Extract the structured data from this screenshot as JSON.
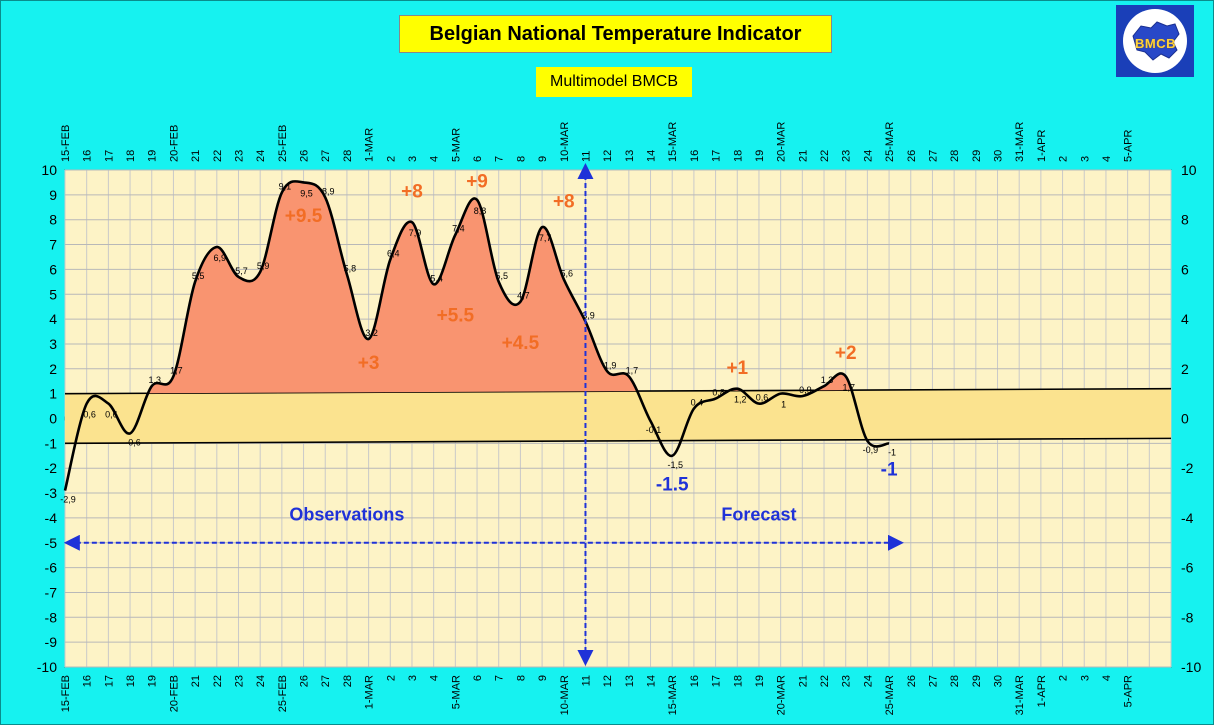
{
  "header": {
    "title": "Belgian National Temperature Indicator",
    "subtitle": "Multimodel BMCB",
    "logo_text": "BMCB"
  },
  "colors": {
    "background": "#16f2f0",
    "plot_area": "#fdf3c6",
    "band": "#fbe38f",
    "fill_above": "#f99470",
    "curve": "#000000",
    "accent_orange": "#f26d25",
    "accent_blue": "#1f32d8",
    "title_bg": "#ffff00",
    "logo_bg": "#1a3fb8"
  },
  "chart_data": {
    "type": "line",
    "x_tick_labels": [
      "15-FEB",
      "16",
      "17",
      "18",
      "19",
      "20-FEB",
      "21",
      "22",
      "23",
      "24",
      "25-FEB",
      "26",
      "27",
      "28",
      "1-MAR",
      "2",
      "3",
      "4",
      "5-MAR",
      "6",
      "7",
      "8",
      "9",
      "10-MAR",
      "11",
      "12",
      "13",
      "14",
      "15-MAR",
      "16",
      "17",
      "18",
      "19",
      "20-MAR",
      "21",
      "22",
      "23",
      "24",
      "25-MAR",
      "26",
      "27",
      "28",
      "29",
      "30",
      "31-MAR",
      "1-APR",
      "2",
      "3",
      "4",
      "5-APR",
      "",
      ""
    ],
    "y_left": {
      "min": -10,
      "max": 10,
      "step": 1
    },
    "y_right": {
      "min": -10,
      "max": 10,
      "ticks": [
        10,
        8,
        6,
        4,
        2,
        0,
        -2,
        -4,
        -6,
        -8,
        -10
      ]
    },
    "grid": true,
    "series": [
      {
        "values": [
          -2.9,
          0.6,
          0.6,
          -0.6,
          1.3,
          1.7,
          5.5,
          6.9,
          5.7,
          5.9,
          9.1,
          9.5,
          8.9,
          5.8,
          3.2,
          6.4,
          7.9,
          5.4,
          7.4,
          8.8,
          5.5,
          4.7,
          7.7,
          5.6,
          3.9,
          1.9,
          1.7,
          -0.1,
          -1.5,
          0.4,
          0.8,
          1.2,
          0.6,
          1.0,
          0.9,
          1.3,
          1.7,
          -0.9,
          -1.0
        ],
        "labels": [
          "-2,9",
          "0,6",
          "0,6",
          "-0,6",
          "1,3",
          "1,7",
          "5,5",
          "6,9",
          "5,7",
          "5,9",
          "9,1",
          "9,5",
          "8,9",
          "5,8",
          "3,2",
          "6,4",
          "7,9",
          "5,4",
          "7,4",
          "8,8",
          "5,5",
          "4,7",
          "7,7",
          "5,6",
          "3,9",
          "1,9",
          "1,7",
          "-0,1",
          "-1,5",
          "0,4",
          "0,8",
          "1,2",
          "0,6",
          "1",
          "0,9",
          "1,3",
          "1,7",
          "-0,9",
          "-1"
        ]
      }
    ],
    "normal_band": {
      "upper_start": 1.0,
      "upper_end": 1.2,
      "lower_start": -1.0,
      "lower_end": -0.8
    },
    "forecast_start_index": 24,
    "annotations": [
      {
        "text": "+9.5",
        "x": 11,
        "y": 7.9,
        "color": "orange"
      },
      {
        "text": "+3",
        "x": 14,
        "y": 2.0,
        "color": "orange"
      },
      {
        "text": "+8",
        "x": 16,
        "y": 8.9,
        "color": "orange"
      },
      {
        "text": "+5.5",
        "x": 18,
        "y": 3.9,
        "color": "orange"
      },
      {
        "text": "+9",
        "x": 19,
        "y": 9.3,
        "color": "orange"
      },
      {
        "text": "+4.5",
        "x": 21,
        "y": 2.8,
        "color": "orange"
      },
      {
        "text": "+8",
        "x": 23,
        "y": 8.5,
        "color": "orange"
      },
      {
        "text": "-1.5",
        "x": 28,
        "y": -2.9,
        "color": "blue"
      },
      {
        "text": "+1",
        "x": 31,
        "y": 1.8,
        "color": "orange"
      },
      {
        "text": "+2",
        "x": 36,
        "y": 2.4,
        "color": "orange"
      },
      {
        "text": "-1",
        "x": 38,
        "y": -2.3,
        "color": "blue"
      }
    ],
    "section_labels": [
      {
        "text": "Observations",
        "x": 13,
        "y": -4.1
      },
      {
        "text": "Forecast",
        "x": 32,
        "y": -4.1
      }
    ],
    "period_arrow": {
      "from_x": 0.5,
      "to_x": 38.5,
      "y": -5
    },
    "divider_arrow": {
      "x": 24,
      "y_from": 9.8,
      "y_to": -9.8
    }
  }
}
